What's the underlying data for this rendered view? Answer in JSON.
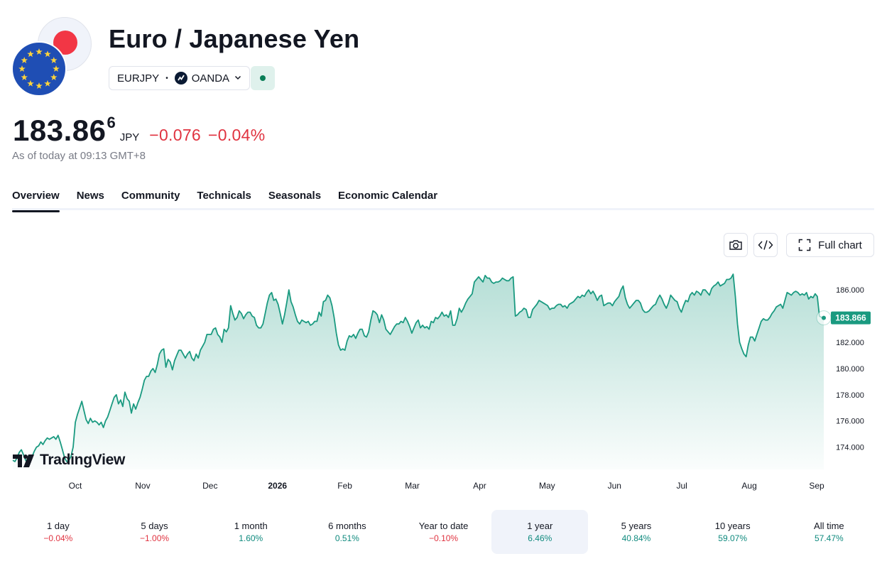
{
  "header": {
    "title": "Euro / Japanese Yen",
    "symbol": "EURJPY",
    "separator": "•",
    "exchange": "OANDA"
  },
  "quote": {
    "price": "183.86",
    "price_last_digit": "6",
    "currency": "JPY",
    "change": "−0.076",
    "change_percent": "−0.04%",
    "as_of": "As of today at 09:13 GMT+8"
  },
  "tabs": [
    {
      "label": "Overview",
      "active": true
    },
    {
      "label": "News"
    },
    {
      "label": "Community"
    },
    {
      "label": "Technicals"
    },
    {
      "label": "Seasonals"
    },
    {
      "label": "Economic Calendar"
    }
  ],
  "toolbar": {
    "camera_icon": "camera-icon",
    "embed_icon": "code-embed-icon",
    "full_chart_label": "Full chart",
    "full_chart_icon": "expand-icon"
  },
  "brand": {
    "tradingview_label": "TradingView"
  },
  "colors": {
    "line": "#1a9a80",
    "price_tag": "#1a9a80",
    "negative": "#e03340",
    "positive": "#0f8a7e"
  },
  "chart_data": {
    "type": "area",
    "ylim": [
      172.3,
      187.8
    ],
    "yticks": [
      "186.000",
      "184.000",
      "182.000",
      "180.000",
      "178.000",
      "176.000",
      "174.000"
    ],
    "xticks": [
      "Oct",
      "Nov",
      "Dec",
      "2026",
      "Feb",
      "Mar",
      "Apr",
      "May",
      "Jun",
      "Jul",
      "Aug",
      "Sep"
    ],
    "last_price_label": "183.866",
    "series": [
      {
        "values": [
          173.0,
          172.9,
          173.2,
          173.6,
          173.8,
          173.4,
          173.0,
          172.8,
          172.9,
          173.3,
          173.7,
          174.0,
          174.1,
          174.4,
          174.2,
          174.5,
          174.7,
          174.6,
          174.7,
          174.8,
          174.6,
          174.9,
          174.4,
          173.8,
          173.2,
          172.9,
          173.0,
          173.3,
          174.0,
          175.9,
          176.5,
          177.0,
          177.5,
          176.8,
          176.1,
          175.8,
          176.2,
          175.9,
          176.0,
          175.9,
          175.7,
          175.9,
          175.5,
          176.0,
          176.3,
          176.8,
          177.3,
          177.8,
          178.0,
          177.3,
          177.6,
          177.1,
          178.2,
          177.7,
          177.5,
          176.6,
          177.3,
          176.9,
          177.4,
          177.8,
          178.4,
          179.1,
          179.4,
          179.4,
          179.8,
          180.0,
          179.7,
          180.3,
          181.1,
          181.4,
          181.5,
          180.1,
          180.7,
          180.5,
          179.9,
          180.6,
          181.0,
          181.4,
          181.4,
          181.1,
          180.8,
          181.1,
          181.3,
          180.8,
          180.6,
          181.1,
          180.8,
          181.4,
          181.7,
          182.0,
          182.6,
          182.6,
          182.6,
          183.0,
          183.1,
          182.6,
          182.4,
          182.0,
          183.0,
          182.8,
          183.1,
          184.8,
          184.2,
          183.7,
          183.9,
          184.4,
          184.2,
          183.8,
          184.1,
          184.3,
          184.3,
          184.0,
          183.9,
          183.3,
          183.1,
          183.1,
          183.4,
          184.2,
          185.0,
          185.6,
          185.8,
          185.2,
          185.3,
          184.9,
          184.2,
          183.4,
          184.1,
          185.0,
          186.0,
          185.1,
          184.7,
          184.1,
          183.6,
          183.4,
          183.7,
          183.6,
          183.5,
          183.6,
          183.3,
          183.4,
          183.6,
          183.6,
          184.3,
          184.0,
          185.1,
          185.2,
          185.6,
          185.4,
          184.8,
          183.9,
          182.7,
          181.8,
          181.4,
          181.5,
          181.4,
          182.1,
          182.5,
          182.4,
          182.6,
          182.3,
          182.7,
          183.0,
          183.0,
          182.5,
          182.4,
          182.8,
          183.7,
          184.4,
          184.3,
          184.1,
          183.5,
          184.1,
          183.7,
          183.0,
          182.8,
          182.6,
          182.9,
          183.2,
          183.4,
          183.4,
          183.6,
          183.5,
          183.9,
          183.6,
          183.2,
          182.7,
          183.1,
          183.5,
          183.7,
          183.1,
          183.3,
          183.1,
          183.2,
          183.0,
          183.6,
          183.5,
          183.9,
          183.8,
          184.0,
          184.3,
          184.0,
          184.1,
          183.9,
          184.4,
          183.3,
          183.3,
          183.8,
          184.6,
          184.3,
          184.6,
          185.0,
          185.3,
          185.5,
          185.7,
          186.6,
          186.8,
          187.0,
          186.8,
          186.6,
          187.1,
          186.9,
          186.9,
          186.6,
          186.5,
          186.6,
          186.6,
          186.7,
          186.9,
          186.8,
          186.7,
          186.7,
          186.9,
          187.0,
          184.0,
          184.1,
          184.3,
          184.4,
          184.6,
          184.5,
          183.9,
          183.9,
          184.5,
          184.7,
          184.9,
          185.2,
          185.1,
          185.0,
          184.9,
          184.8,
          184.5,
          184.6,
          184.6,
          184.8,
          184.9,
          184.9,
          184.7,
          184.8,
          184.6,
          184.9,
          185.0,
          185.1,
          185.3,
          185.5,
          185.4,
          185.6,
          185.5,
          185.8,
          186.0,
          185.7,
          185.9,
          185.6,
          185.2,
          185.5,
          185.6,
          184.8,
          184.9,
          185.0,
          185.0,
          184.8,
          185.1,
          185.3,
          185.5,
          186.0,
          186.3,
          185.4,
          184.9,
          184.6,
          184.8,
          185.0,
          185.2,
          185.2,
          185.0,
          184.5,
          184.3,
          184.3,
          184.4,
          184.6,
          184.8,
          184.9,
          185.3,
          185.6,
          185.3,
          184.9,
          184.6,
          185.0,
          185.6,
          185.4,
          185.2,
          185.1,
          184.6,
          184.3,
          184.8,
          185.2,
          185.1,
          185.6,
          185.8,
          185.6,
          185.9,
          185.8,
          185.6,
          186.0,
          186.0,
          185.8,
          185.6,
          186.1,
          186.3,
          186.4,
          186.6,
          186.3,
          186.4,
          186.5,
          186.8,
          186.8,
          186.9,
          187.2,
          185.5,
          183.4,
          182.0,
          181.5,
          181.1,
          180.9,
          181.8,
          182.4,
          182.4,
          182.1,
          182.6,
          183.1,
          183.6,
          183.8,
          183.7,
          183.7,
          183.9,
          184.2,
          184.4,
          184.7,
          184.8,
          184.9,
          184.6,
          185.2,
          185.8,
          185.7,
          185.6,
          185.8,
          185.9,
          185.8,
          185.6,
          185.7,
          185.6,
          185.8,
          185.3,
          185.5,
          185.4,
          185.7,
          185.5,
          184.0,
          183.9,
          183.866
        ]
      }
    ]
  },
  "periods": [
    {
      "label": "1 day",
      "change": "−0.04%",
      "dir": "neg"
    },
    {
      "label": "5 days",
      "change": "−1.00%",
      "dir": "neg"
    },
    {
      "label": "1 month",
      "change": "1.60%",
      "dir": "pos"
    },
    {
      "label": "6 months",
      "change": "0.51%",
      "dir": "pos"
    },
    {
      "label": "Year to date",
      "change": "−0.10%",
      "dir": "neg"
    },
    {
      "label": "1 year",
      "change": "6.46%",
      "dir": "pos",
      "active": true
    },
    {
      "label": "5 years",
      "change": "40.84%",
      "dir": "pos"
    },
    {
      "label": "10 years",
      "change": "59.07%",
      "dir": "pos"
    },
    {
      "label": "All time",
      "change": "57.47%",
      "dir": "pos"
    }
  ]
}
